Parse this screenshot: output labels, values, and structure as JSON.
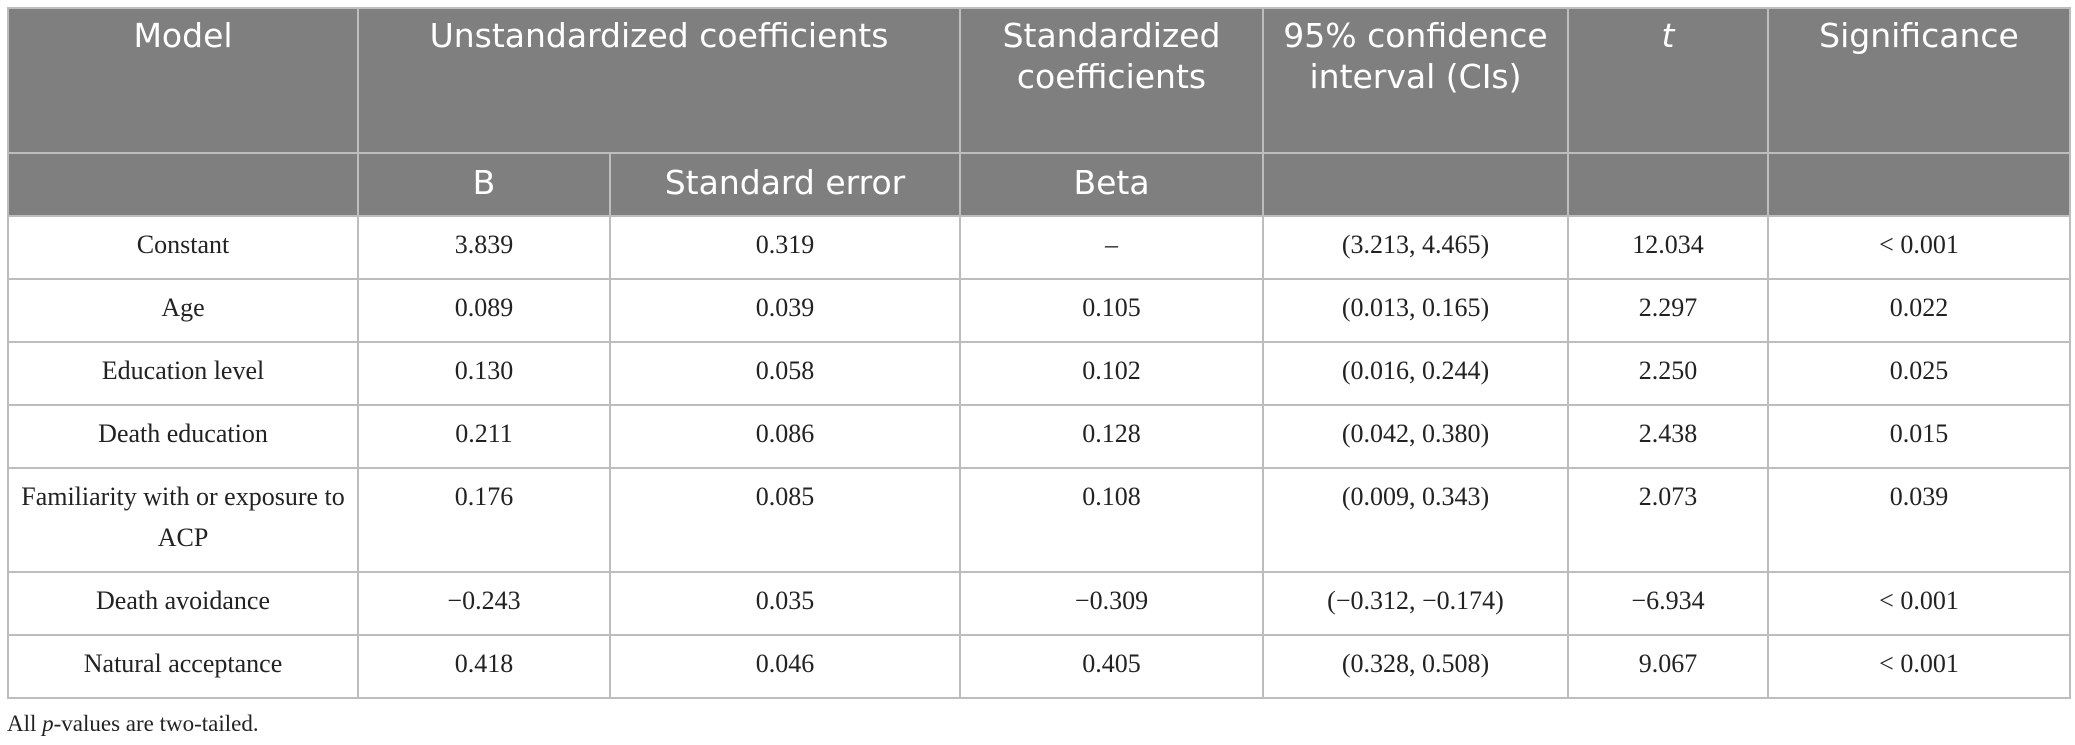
{
  "header": {
    "model": "Model",
    "unstandardized": "Unstandardized coefficients",
    "standardized": "Standardized coefficients",
    "ci": "95% confidence interval (CIs)",
    "t": "t",
    "significance": "Significance",
    "sub_b": "B",
    "sub_se": "Standard error",
    "sub_beta": "Beta"
  },
  "rows": [
    {
      "model": "Constant",
      "b": "3.839",
      "se": "0.319",
      "beta": "–",
      "ci": "(3.213, 4.465)",
      "t": "12.034",
      "sig": "< 0.001"
    },
    {
      "model": "Age",
      "b": "0.089",
      "se": "0.039",
      "beta": "0.105",
      "ci": "(0.013, 0.165)",
      "t": "2.297",
      "sig": "0.022"
    },
    {
      "model": "Education level",
      "b": "0.130",
      "se": "0.058",
      "beta": "0.102",
      "ci": "(0.016, 0.244)",
      "t": "2.250",
      "sig": "0.025"
    },
    {
      "model": "Death education",
      "b": "0.211",
      "se": "0.086",
      "beta": "0.128",
      "ci": "(0.042, 0.380)",
      "t": "2.438",
      "sig": "0.015"
    },
    {
      "model": "Familiarity with or exposure to ACP",
      "b": "0.176",
      "se": "0.085",
      "beta": "0.108",
      "ci": "(0.009, 0.343)",
      "t": "2.073",
      "sig": "0.039"
    },
    {
      "model": "Death avoidance",
      "b": "−0.243",
      "se": "0.035",
      "beta": "−0.309",
      "ci": "(−0.312, −0.174)",
      "t": "−6.934",
      "sig": "< 0.001"
    },
    {
      "model": "Natural acceptance",
      "b": "0.418",
      "se": "0.046",
      "beta": "0.405",
      "ci": "(0.328, 0.508)",
      "t": "9.067",
      "sig": "< 0.001"
    }
  ],
  "footnote": {
    "prefix": "All ",
    "p": "p",
    "suffix": "-values are two-tailed."
  }
}
